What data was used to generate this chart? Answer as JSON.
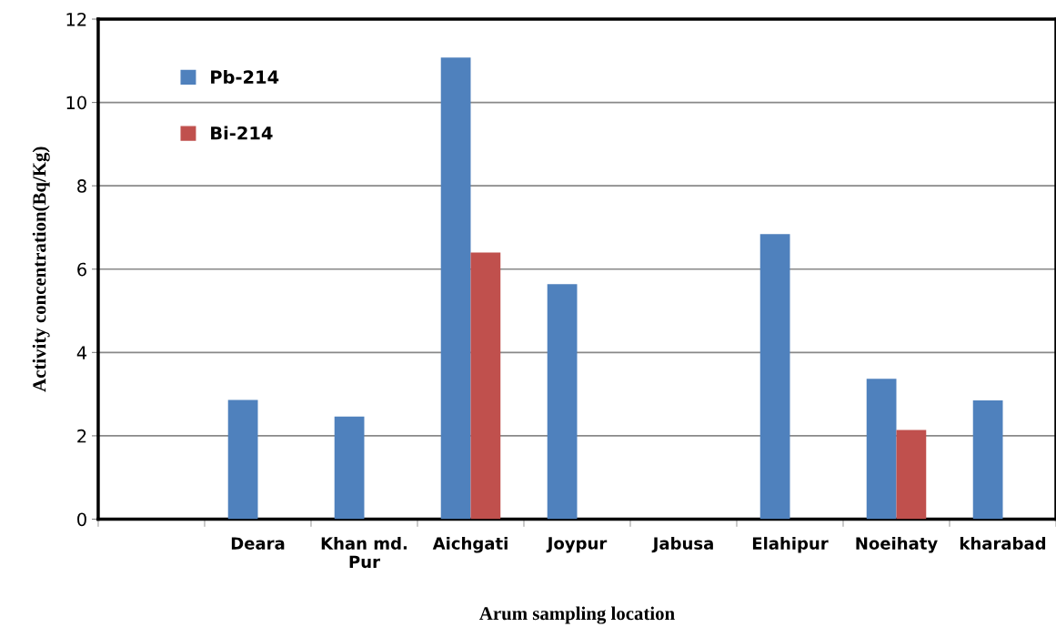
{
  "chart_data": {
    "type": "bar",
    "xlabel": "Arum sampling location",
    "ylabel": "Activity concentration(Bq/Kg)",
    "categories": [
      null,
      "Deara",
      "Khan md.\nPur",
      "Aichgati",
      "Joypur",
      "Jabusa",
      "Elahipur",
      "Noeihaty",
      "kharabad"
    ],
    "series": [
      {
        "name": "Pb-214",
        "color": "#4f81bd",
        "values": [
          null,
          2.86,
          2.46,
          11.08,
          5.64,
          null,
          6.84,
          3.37,
          2.85
        ]
      },
      {
        "name": "Bi-214",
        "color": "#c0504d",
        "values": [
          null,
          null,
          null,
          6.4,
          null,
          null,
          null,
          2.14,
          null
        ]
      }
    ],
    "ylim": [
      0,
      12
    ],
    "yticks": [
      0,
      2,
      4,
      6,
      8,
      10,
      12
    ],
    "grid": "y",
    "legend": "top left"
  }
}
